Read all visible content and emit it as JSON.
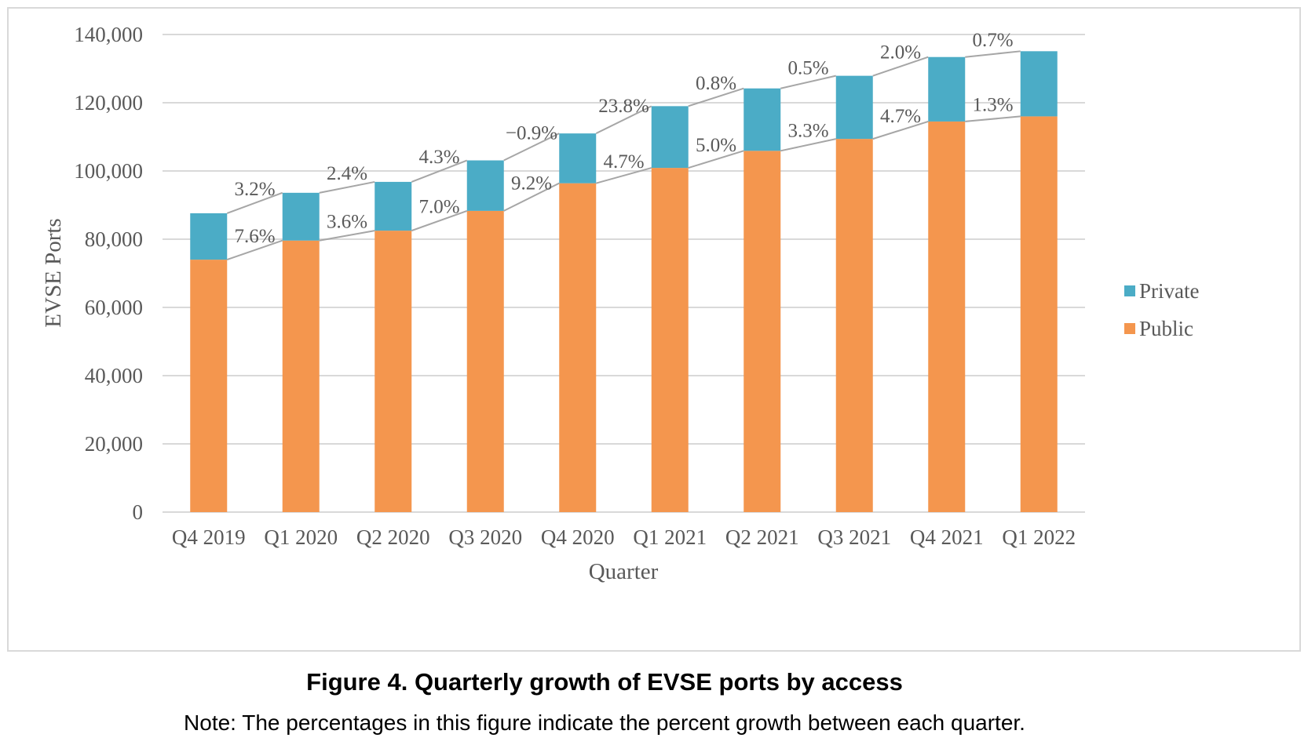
{
  "chart_data": {
    "type": "bar",
    "stacked": true,
    "title": "",
    "xlabel": "Quarter",
    "ylabel": "EVSE Ports",
    "ylim": [
      0,
      140000
    ],
    "yticks": [
      0,
      20000,
      40000,
      60000,
      80000,
      100000,
      120000,
      140000
    ],
    "ytick_labels": [
      "0",
      "20,000",
      "40,000",
      "60,000",
      "80,000",
      "100,000",
      "120,000",
      "140,000"
    ],
    "grid": true,
    "legend_position": "right",
    "categories": [
      "Q4 2019",
      "Q1 2020",
      "Q2 2020",
      "Q3 2020",
      "Q4 2020",
      "Q1 2021",
      "Q2 2021",
      "Q3 2021",
      "Q4 2021",
      "Q1 2022"
    ],
    "series": [
      {
        "name": "Public",
        "color": "#f4964e",
        "values": [
          74000,
          79600,
          82500,
          88300,
          96400,
          100900,
          105900,
          109400,
          114500,
          116000
        ]
      },
      {
        "name": "Private",
        "color": "#4bacc6",
        "values": [
          13600,
          14000,
          14300,
          14800,
          14600,
          18100,
          18300,
          18500,
          18900,
          19100
        ]
      }
    ],
    "legend": [
      "Private",
      "Public"
    ],
    "annotations": {
      "private_growth": [
        "3.2%",
        "2.4%",
        "4.3%",
        "−0.9%",
        "23.8%",
        "0.8%",
        "0.5%",
        "2.0%",
        "0.7%"
      ],
      "public_growth": [
        "7.6%",
        "3.6%",
        "7.0%",
        "9.2%",
        "4.7%",
        "5.0%",
        "3.3%",
        "4.7%",
        "1.3%"
      ]
    }
  },
  "figure": {
    "caption": "Figure 4. Quarterly growth of EVSE ports by access",
    "note": "Note: The percentages in this figure indicate the percent growth between each quarter."
  }
}
